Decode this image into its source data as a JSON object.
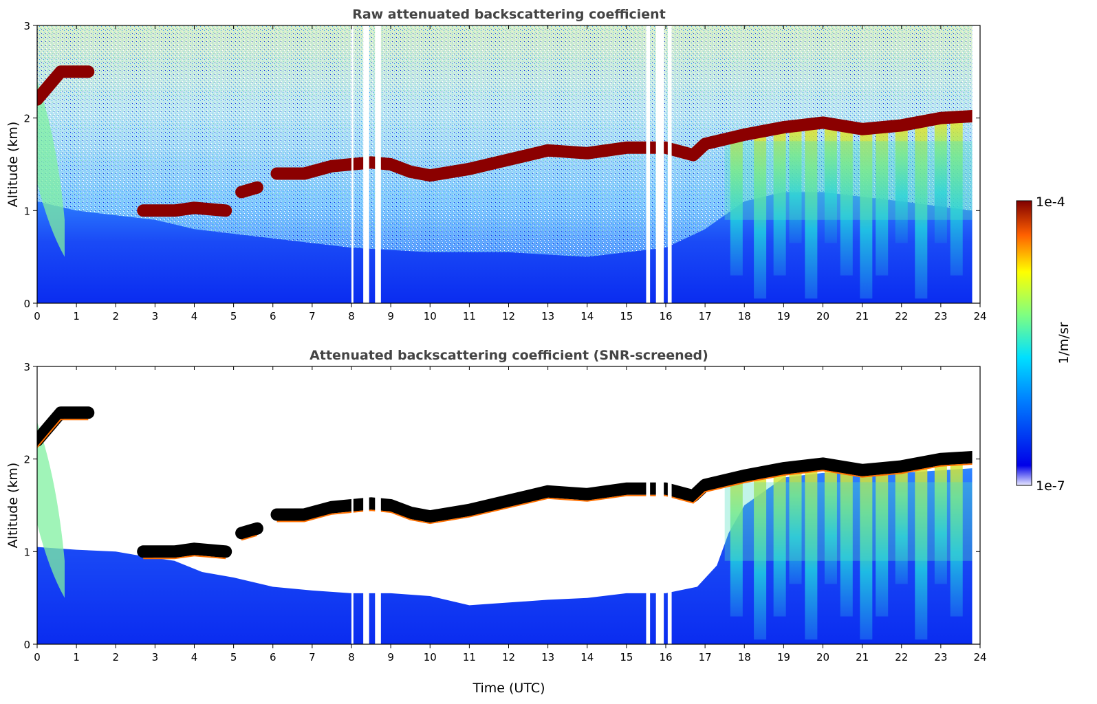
{
  "figure": {
    "colorbar": {
      "label": "1/m/sr",
      "top_label": "1e-4",
      "bottom_label": "1e-7"
    },
    "xlabel": "Time (UTC)"
  },
  "chart_data": [
    {
      "type": "heatmap",
      "title": "Raw attenuated backscattering coefficient",
      "xlabel": "",
      "ylabel": "Altitude (km)",
      "xlim": [
        0,
        24
      ],
      "ylim": [
        0,
        3
      ],
      "xticks": [
        0,
        1,
        2,
        3,
        4,
        5,
        6,
        7,
        8,
        9,
        10,
        11,
        12,
        13,
        14,
        15,
        16,
        17,
        18,
        19,
        20,
        21,
        22,
        23,
        24
      ],
      "yticks": [
        0,
        1,
        2,
        3
      ],
      "colorscale": {
        "min": "1e-7",
        "max": "1e-4",
        "units": "1/m/sr",
        "scale": "log",
        "colormap": "jet"
      },
      "cloud_layer": [
        {
          "x": 0.0,
          "y": 2.2
        },
        {
          "x": 0.3,
          "y": 2.35
        },
        {
          "x": 0.6,
          "y": 2.5
        },
        {
          "x": 1.0,
          "y": 2.5
        },
        {
          "x": 1.3,
          "y": 2.5
        },
        {
          "x": 2.7,
          "y": 1.0
        },
        {
          "x": 3.5,
          "y": 1.0
        },
        {
          "x": 4.0,
          "y": 1.03
        },
        {
          "x": 4.8,
          "y": 1.0
        },
        {
          "x": 5.2,
          "y": 1.2
        },
        {
          "x": 5.6,
          "y": 1.25
        },
        {
          "x": 6.1,
          "y": 1.4
        },
        {
          "x": 6.8,
          "y": 1.4
        },
        {
          "x": 7.5,
          "y": 1.48
        },
        {
          "x": 8.5,
          "y": 1.52
        },
        {
          "x": 9.0,
          "y": 1.5
        },
        {
          "x": 9.5,
          "y": 1.42
        },
        {
          "x": 10.0,
          "y": 1.38
        },
        {
          "x": 11.0,
          "y": 1.45
        },
        {
          "x": 12.0,
          "y": 1.55
        },
        {
          "x": 13.0,
          "y": 1.65
        },
        {
          "x": 14.0,
          "y": 1.62
        },
        {
          "x": 15.0,
          "y": 1.68
        },
        {
          "x": 16.0,
          "y": 1.68
        },
        {
          "x": 16.7,
          "y": 1.6
        },
        {
          "x": 17.0,
          "y": 1.72
        },
        {
          "x": 18.0,
          "y": 1.82
        },
        {
          "x": 19.0,
          "y": 1.9
        },
        {
          "x": 20.0,
          "y": 1.95
        },
        {
          "x": 21.0,
          "y": 1.88
        },
        {
          "x": 22.0,
          "y": 1.92
        },
        {
          "x": 23.0,
          "y": 2.0
        },
        {
          "x": 23.8,
          "y": 2.02
        }
      ],
      "data_gaps_utc": [
        [
          8.0,
          8.05
        ],
        [
          8.3,
          8.45
        ],
        [
          8.6,
          8.75
        ],
        [
          15.5,
          15.6
        ],
        [
          15.75,
          15.95
        ],
        [
          16.05,
          16.15
        ]
      ],
      "boundary_layer_top": [
        {
          "x": 0.0,
          "y": 1.1
        },
        {
          "x": 1.0,
          "y": 1.0
        },
        {
          "x": 2.0,
          "y": 0.95
        },
        {
          "x": 3.0,
          "y": 0.9
        },
        {
          "x": 4.0,
          "y": 0.8
        },
        {
          "x": 5.0,
          "y": 0.75
        },
        {
          "x": 6.0,
          "y": 0.7
        },
        {
          "x": 8.0,
          "y": 0.6
        },
        {
          "x": 10.0,
          "y": 0.55
        },
        {
          "x": 12.0,
          "y": 0.55
        },
        {
          "x": 14.0,
          "y": 0.5
        },
        {
          "x": 16.0,
          "y": 0.6
        },
        {
          "x": 17.0,
          "y": 0.8
        },
        {
          "x": 18.0,
          "y": 1.1
        },
        {
          "x": 19.0,
          "y": 1.2
        },
        {
          "x": 20.0,
          "y": 1.2
        },
        {
          "x": 22.0,
          "y": 1.1
        },
        {
          "x": 23.8,
          "y": 1.0
        }
      ],
      "precipitation_streaks_utc": [
        17.8,
        18.4,
        18.9,
        19.3,
        19.7,
        20.2,
        20.6,
        21.1,
        21.5,
        22.0,
        22.5,
        23.0,
        23.4
      ]
    },
    {
      "type": "heatmap",
      "title": "Attenuated backscattering coefficient (SNR-screened)",
      "xlabel": "Time (UTC)",
      "ylabel": "Altitude (km)",
      "xlim": [
        0,
        24
      ],
      "ylim": [
        0,
        3
      ],
      "xticks": [
        0,
        1,
        2,
        3,
        4,
        5,
        6,
        7,
        8,
        9,
        10,
        11,
        12,
        13,
        14,
        15,
        16,
        17,
        18,
        19,
        20,
        21,
        22,
        23,
        24
      ],
      "yticks": [
        0,
        1,
        2,
        3
      ],
      "colorscale": {
        "min": "1e-7",
        "max": "1e-4",
        "units": "1/m/sr",
        "scale": "log",
        "colormap": "jet"
      },
      "cloud_layer": [
        {
          "x": 0.0,
          "y": 2.2
        },
        {
          "x": 0.3,
          "y": 2.35
        },
        {
          "x": 0.6,
          "y": 2.5
        },
        {
          "x": 1.0,
          "y": 2.5
        },
        {
          "x": 1.3,
          "y": 2.5
        },
        {
          "x": 2.7,
          "y": 1.0
        },
        {
          "x": 3.5,
          "y": 1.0
        },
        {
          "x": 4.0,
          "y": 1.03
        },
        {
          "x": 4.8,
          "y": 1.0
        },
        {
          "x": 5.2,
          "y": 1.2
        },
        {
          "x": 5.6,
          "y": 1.25
        },
        {
          "x": 6.1,
          "y": 1.4
        },
        {
          "x": 6.8,
          "y": 1.4
        },
        {
          "x": 7.5,
          "y": 1.48
        },
        {
          "x": 8.5,
          "y": 1.52
        },
        {
          "x": 9.0,
          "y": 1.5
        },
        {
          "x": 9.5,
          "y": 1.42
        },
        {
          "x": 10.0,
          "y": 1.38
        },
        {
          "x": 11.0,
          "y": 1.45
        },
        {
          "x": 12.0,
          "y": 1.55
        },
        {
          "x": 13.0,
          "y": 1.65
        },
        {
          "x": 14.0,
          "y": 1.62
        },
        {
          "x": 15.0,
          "y": 1.68
        },
        {
          "x": 16.0,
          "y": 1.68
        },
        {
          "x": 16.7,
          "y": 1.6
        },
        {
          "x": 17.0,
          "y": 1.72
        },
        {
          "x": 18.0,
          "y": 1.82
        },
        {
          "x": 19.0,
          "y": 1.9
        },
        {
          "x": 20.0,
          "y": 1.95
        },
        {
          "x": 21.0,
          "y": 1.88
        },
        {
          "x": 22.0,
          "y": 1.92
        },
        {
          "x": 23.0,
          "y": 2.0
        },
        {
          "x": 23.8,
          "y": 2.02
        }
      ],
      "data_gaps_utc": [
        [
          8.0,
          8.05
        ],
        [
          8.3,
          8.45
        ],
        [
          8.6,
          8.75
        ],
        [
          15.5,
          15.6
        ],
        [
          15.75,
          15.95
        ],
        [
          16.05,
          16.15
        ]
      ],
      "screened_top": [
        {
          "x": 0.0,
          "y": 1.05
        },
        {
          "x": 1.0,
          "y": 1.02
        },
        {
          "x": 2.0,
          "y": 1.0
        },
        {
          "x": 2.7,
          "y": 0.95
        },
        {
          "x": 3.5,
          "y": 0.9
        },
        {
          "x": 4.2,
          "y": 0.78
        },
        {
          "x": 5.0,
          "y": 0.72
        },
        {
          "x": 6.0,
          "y": 0.62
        },
        {
          "x": 7.0,
          "y": 0.58
        },
        {
          "x": 8.0,
          "y": 0.55
        },
        {
          "x": 9.0,
          "y": 0.55
        },
        {
          "x": 10.0,
          "y": 0.52
        },
        {
          "x": 11.0,
          "y": 0.42
        },
        {
          "x": 12.0,
          "y": 0.45
        },
        {
          "x": 13.0,
          "y": 0.48
        },
        {
          "x": 14.0,
          "y": 0.5
        },
        {
          "x": 15.0,
          "y": 0.55
        },
        {
          "x": 16.0,
          "y": 0.55
        },
        {
          "x": 16.8,
          "y": 0.62
        },
        {
          "x": 17.3,
          "y": 0.85
        },
        {
          "x": 17.6,
          "y": 1.2
        },
        {
          "x": 18.0,
          "y": 1.5
        },
        {
          "x": 19.0,
          "y": 1.8
        },
        {
          "x": 20.0,
          "y": 1.85
        },
        {
          "x": 22.0,
          "y": 1.85
        },
        {
          "x": 23.8,
          "y": 1.9
        }
      ],
      "precipitation_streaks_utc": [
        17.8,
        18.4,
        18.9,
        19.3,
        19.7,
        20.2,
        20.6,
        21.1,
        21.5,
        22.0,
        22.5,
        23.0,
        23.4
      ]
    }
  ]
}
